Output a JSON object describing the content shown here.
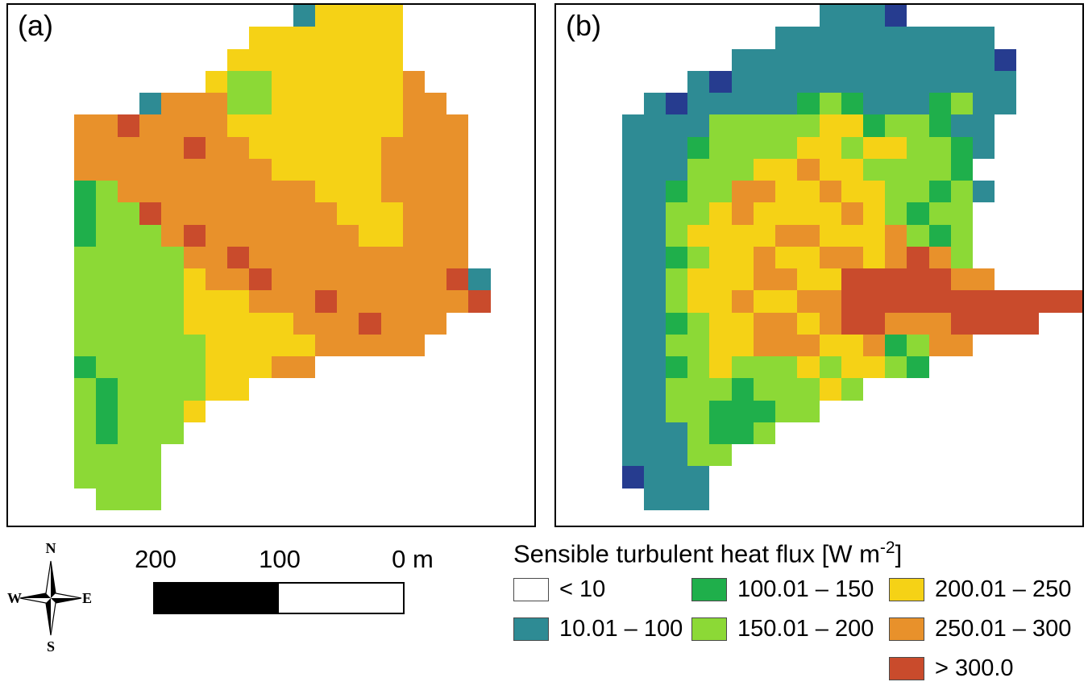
{
  "panels": [
    {
      "id": "a",
      "label": "(a)"
    },
    {
      "id": "b",
      "label": "(b)"
    }
  ],
  "maps": {
    "cols": 24,
    "palette": {
      "W": {
        "color": "#FFFFFF",
        "label": "< 10"
      },
      "T": {
        "color": "#2E8B94",
        "label": "10.01 – 100"
      },
      "G": {
        "color": "#1FAF4B",
        "label": "100.01 – 150"
      },
      "L": {
        "color": "#8CD936",
        "label": "150.01 – 200"
      },
      "Y": {
        "color": "#F5D216",
        "label": "200.01 – 250"
      },
      "O": {
        "color": "#E8912B",
        "label": "250.01 – 300"
      },
      "R": {
        "color": "#C94B2C",
        "label": "> 300.0"
      },
      "N": {
        "color": "#263C8F",
        "label": "dark-blue"
      }
    },
    "a": {
      "rows": [
        ".............TYYYY......",
        "...........YYYYYYY......",
        "..........YYYYYYYY......",
        ".........YLLYYYYYYO.....",
        "......TOOOLLYYYYYYOO....",
        "...OOROOOOYYYYYYYYOOO...",
        "...OOOOOROOYYYYYYOOOO...",
        "...OOOOOOOOOYYYYYOOOO...",
        "...GLOOOOOOOOOYYYOOOO...",
        "...GLLROOOOOOOOYYYOOO...",
        "...GLLLOROOOOOOOYYOOO...",
        "...LLLLLOOROOOOOOOOOO...",
        "...LLLLLYOOROOOOOOOORT..",
        "...LLLLLYYYOOOROOOOOOR..",
        "...LLLLLYYYYYOOOROOO....",
        "...LLLLLLYYYYYOOOOO.....",
        "...GLLLLLYYYOO..........",
        "...LGLLLLYY.............",
        "...LGLLLY...............",
        "...LGLLL................",
        "...LLLL.................",
        "...LLLL.................",
        "....LLL................."
      ]
    },
    "b": {
      "rows": [
        "............TTTN........",
        "..........TTTTTTTTTT....",
        "........TTTTTTTTTTTTN...",
        "......TNTTTTTTTTTTTTT...",
        "....TNTTTTTGLGTTTGLTT...",
        "...TTTTLLLLLYYGLLGTT....",
        "...TTTGLLLLYYLYYLLGT....",
        "...TTTLLLYYOYYLLLLG.....",
        "...TTGLLOOYYOYYLLGLT....",
        "...TTLLYOYYYYOYLGLL.....",
        "...TTLYYYYOOYYYOLGL.....",
        "...TTGLYYOYYOOYOROL.....",
        "...TTLYYYOOYYRRRRROO....",
        "...TTLYYOYYOORRRRRRRRRRR",
        "...TTGLYYOOYORROOORRRR..",
        "...TTLLYYOOOYYOGLOO.....",
        "...TTGLYLLLYLYYLG.......",
        "...TTLLLGLLLYL..........",
        "...TTLLGGGLL............",
        "...TTTLGGL..............",
        "...TTTLL................",
        "...NTTT.................",
        "....TTT................."
      ]
    }
  },
  "compass": {
    "n": "N",
    "e": "E",
    "s": "S",
    "w": "W"
  },
  "scalebar": {
    "labels": [
      "200",
      "100",
      "0 m"
    ]
  },
  "legend": {
    "title_prefix": "Sensible turbulent heat flux [W m",
    "title_sup": "-2",
    "title_suffix": "]",
    "columns": [
      [
        {
          "key": "W",
          "label": "< 10"
        },
        {
          "key": "T",
          "label": "10.01 – 100"
        }
      ],
      [
        {
          "key": "G",
          "label": "100.01 – 150"
        },
        {
          "key": "L",
          "label": "150.01 – 200"
        }
      ],
      [
        {
          "key": "Y",
          "label": "200.01 – 250"
        },
        {
          "key": "O",
          "label": "250.01 – 300"
        },
        {
          "key": "R",
          "label": "> 300.0"
        }
      ]
    ]
  }
}
